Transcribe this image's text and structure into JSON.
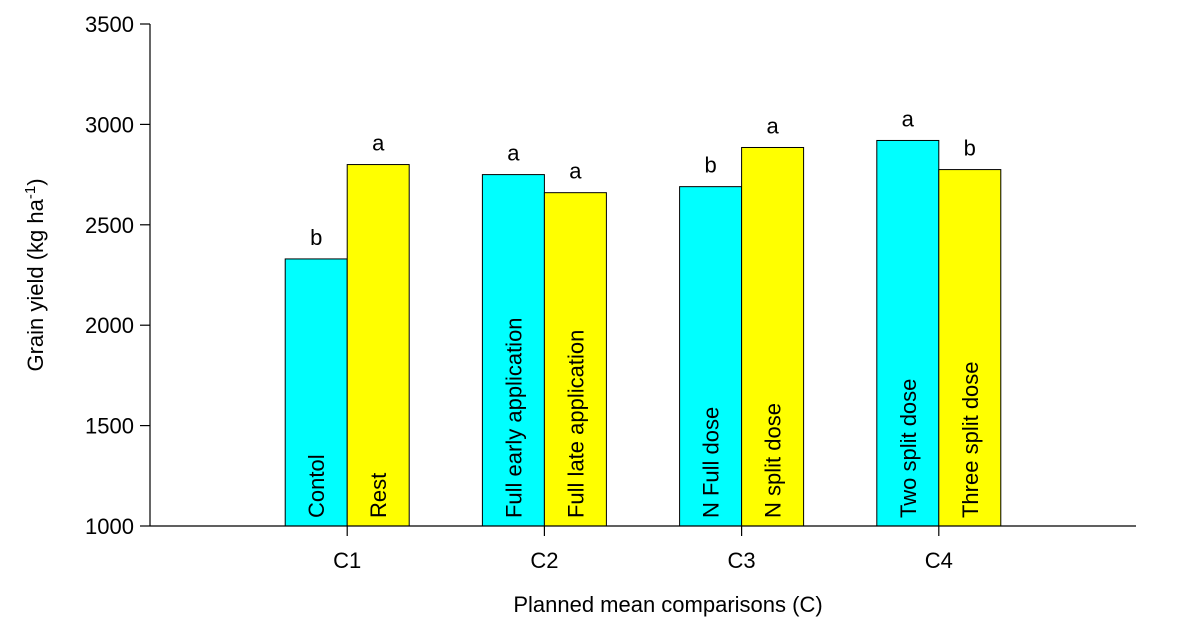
{
  "chart_data": {
    "type": "bar",
    "categories": [
      "C1",
      "C2",
      "C3",
      "C4"
    ],
    "xlabel": "Planned mean comparisons (C)",
    "ylabel": "Grain yield (kg ha",
    "ylabel_sup": "-1",
    "ylabel_close": ")",
    "ylim": [
      1000,
      3500
    ],
    "yticks": [
      1000,
      1500,
      2000,
      2500,
      3000,
      3500
    ],
    "grid": false,
    "colors": {
      "first": "#00ffff",
      "second": "#ffff00"
    },
    "groups": [
      {
        "category": "C1",
        "bars": [
          {
            "label": "Contol",
            "value": 2330,
            "letter": "b"
          },
          {
            "label": "Rest",
            "value": 2800,
            "letter": "a"
          }
        ]
      },
      {
        "category": "C2",
        "bars": [
          {
            "label": "Full early application",
            "value": 2750,
            "letter": "a"
          },
          {
            "label": "Full late application",
            "value": 2660,
            "letter": "a"
          }
        ]
      },
      {
        "category": "C3",
        "bars": [
          {
            "label": "N Full dose",
            "value": 2690,
            "letter": "b"
          },
          {
            "label": "N split dose",
            "value": 2885,
            "letter": "a"
          }
        ]
      },
      {
        "category": "C4",
        "bars": [
          {
            "label": "Two split dose",
            "value": 2920,
            "letter": "a"
          },
          {
            "label": "Three split dose",
            "value": 2775,
            "letter": "b"
          }
        ]
      }
    ]
  }
}
